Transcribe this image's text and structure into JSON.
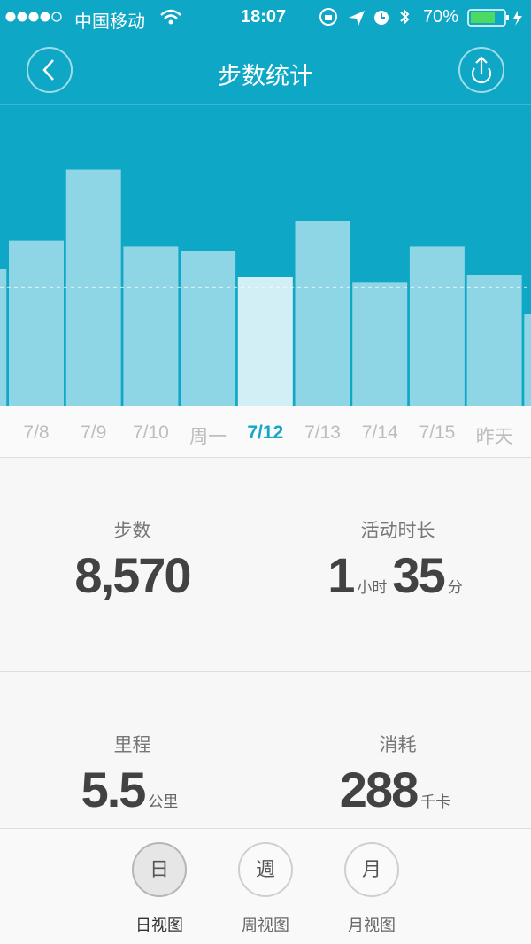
{
  "status_bar": {
    "carrier": "中国移动",
    "time": "18:07",
    "battery": "70%"
  },
  "header": {
    "title": "步数统计"
  },
  "chart_data": {
    "type": "bar",
    "categories": [
      null,
      "7/8",
      "7/9",
      "7/10",
      "周一",
      "7/12",
      "7/13",
      "7/14",
      "7/15",
      "昨天",
      null
    ],
    "values": [
      9100,
      11000,
      15700,
      10600,
      10300,
      8570,
      12300,
      8200,
      10600,
      8700,
      6100
    ],
    "selected": 5,
    "color": "#8ed5e6",
    "selected_color": "#d3eff6",
    "ylim": [
      0,
      19900
    ],
    "reference_line": 7900
  },
  "stats": [
    {
      "label": "步数",
      "parts": [
        "8,570"
      ]
    },
    {
      "label": "活动时长",
      "parts": [
        "1",
        "小时",
        "35",
        "分"
      ]
    },
    {
      "label": "里程",
      "parts": [
        "5.5",
        "公里"
      ]
    },
    {
      "label": "消耗",
      "parts": [
        "288",
        "千卡"
      ]
    }
  ],
  "tabs": {
    "active": 0,
    "items": [
      {
        "icon": "日",
        "label": "日视图"
      },
      {
        "icon": "週",
        "label": "周视图"
      },
      {
        "icon": "月",
        "label": "月视图"
      }
    ]
  }
}
